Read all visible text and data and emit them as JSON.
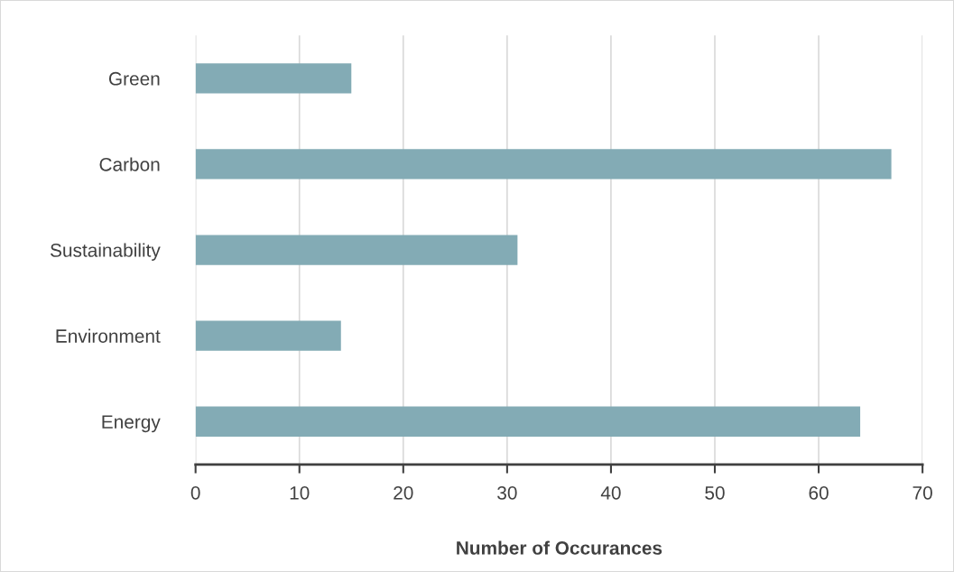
{
  "chart_data": {
    "type": "bar",
    "orientation": "horizontal",
    "xlabel": "Number of Occurances",
    "categories": [
      "Green",
      "Carbon",
      "Sustainability",
      "Environment",
      "Energy"
    ],
    "values": [
      15,
      67,
      31,
      14,
      64
    ],
    "color": "#83abb5",
    "xlim": [
      0,
      70
    ],
    "xticks": [
      0,
      10,
      20,
      30,
      40,
      50,
      60,
      70
    ],
    "grid": "x",
    "legend": false
  }
}
